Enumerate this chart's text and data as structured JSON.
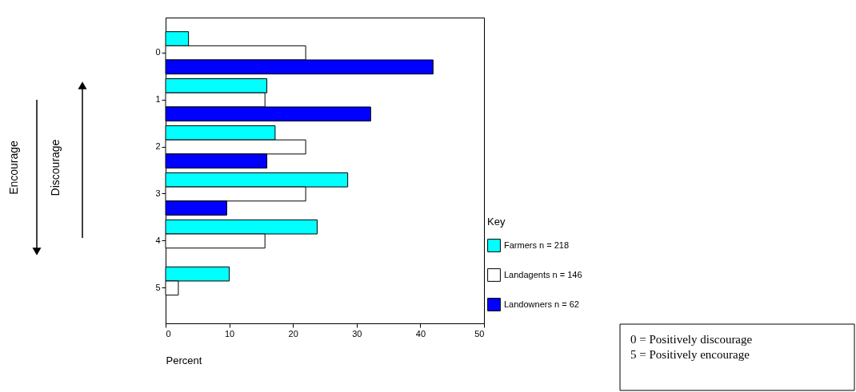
{
  "chart_data": {
    "type": "bar",
    "orientation": "horizontal",
    "xlabel": "Percent",
    "legend_title": "Key",
    "legend": "right",
    "categories": [
      "0",
      "1",
      "2",
      "3",
      "4",
      "5"
    ],
    "series": [
      {
        "name": "Farmers n = 218",
        "color": "#00ffff",
        "values": [
          3.6,
          15.9,
          17.2,
          28.6,
          23.8,
          10.0
        ]
      },
      {
        "name": "Landagents n = 146",
        "color": "#ffffff",
        "values": [
          22.0,
          15.6,
          22.0,
          22.0,
          15.6,
          2.0
        ]
      },
      {
        "name": "Landowners n = 62",
        "color": "#0000ff",
        "values": [
          42.0,
          32.2,
          15.9,
          9.6,
          null,
          null
        ]
      }
    ],
    "xlim": [
      0,
      50
    ],
    "xticks": [
      0,
      10,
      20,
      30,
      40,
      50
    ],
    "grid": false,
    "annotations": [
      "Encourage",
      "Discourage",
      "0 = Positively discourage",
      "5 = Positively encourage"
    ]
  }
}
